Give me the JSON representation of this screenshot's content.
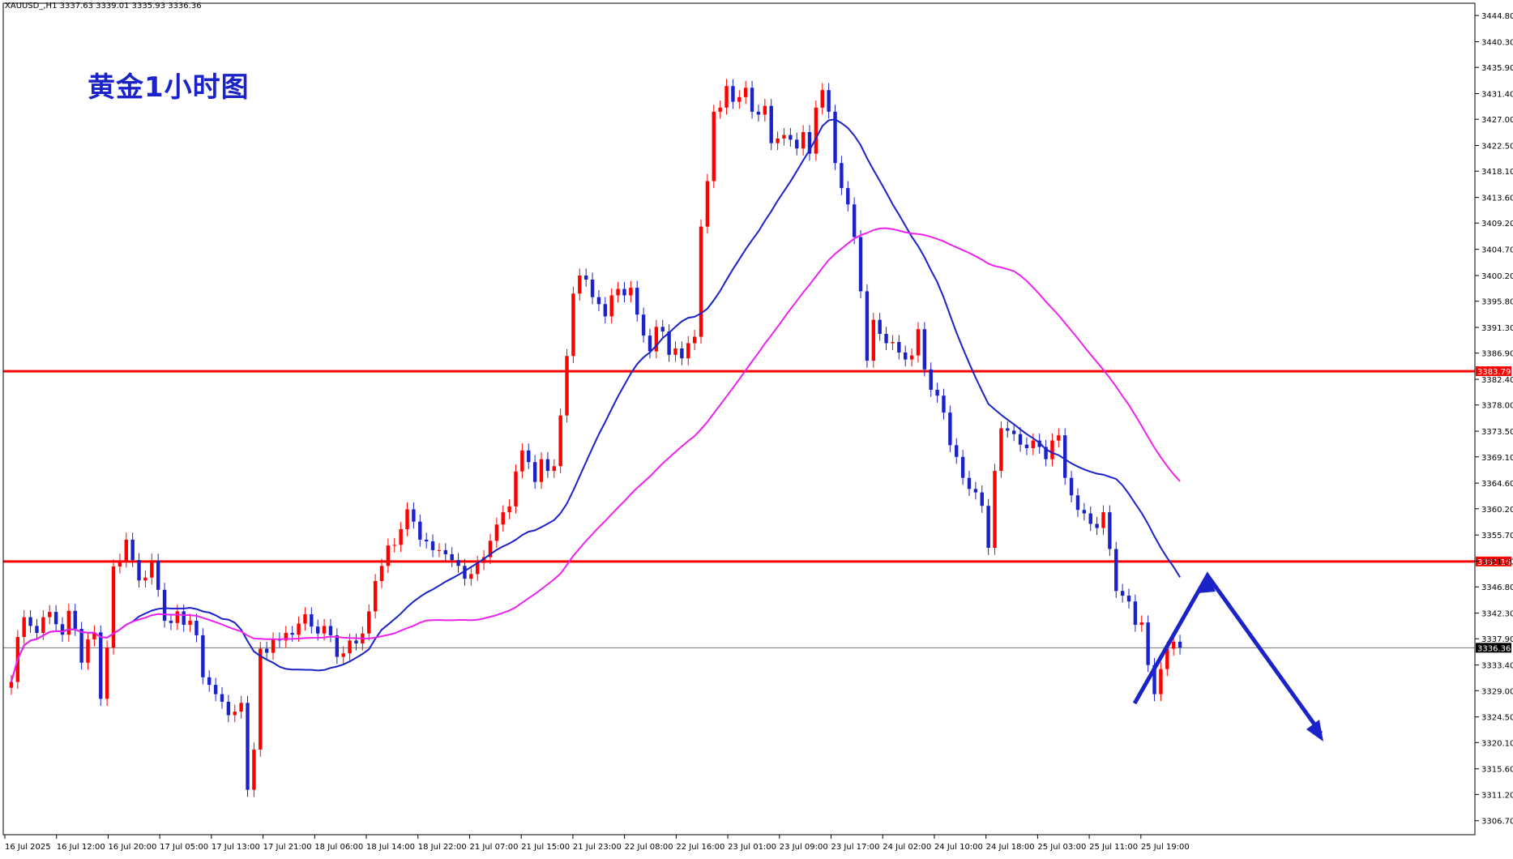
{
  "header": {
    "symbol_info": "XAUUSD_,H1  3337.63 3339.01 3335.93 3336.36"
  },
  "chart_data": {
    "type": "candlestick",
    "title": "黄金1小时图",
    "symbol": "XAUUSD_",
    "timeframe": "H1",
    "ohlc_header": {
      "open": 3337.63,
      "high": 3339.01,
      "low": 3335.93,
      "close": 3336.36
    },
    "ylim": [
      3304.3,
      3446.9
    ],
    "y_ticks": [
      "3444.80",
      "3440.30",
      "3435.90",
      "3431.40",
      "3427.00",
      "3422.50",
      "3418.10",
      "3413.60",
      "3409.20",
      "3404.70",
      "3400.20",
      "3395.80",
      "3391.30",
      "3386.90",
      "3382.40",
      "3378.00",
      "3373.50",
      "3369.10",
      "3364.60",
      "3360.20",
      "3355.70",
      "3351.20",
      "3346.80",
      "3342.30",
      "3337.90",
      "3333.40",
      "3329.00",
      "3324.50",
      "3320.10",
      "3315.60",
      "3311.20",
      "3306.70"
    ],
    "x_ticks": [
      "16 Jul 2025",
      "16 Jul 12:00",
      "16 Jul 20:00",
      "17 Jul 05:00",
      "17 Jul 13:00",
      "17 Jul 21:00",
      "18 Jul 06:00",
      "18 Jul 14:00",
      "18 Jul 22:00",
      "21 Jul 07:00",
      "21 Jul 15:00",
      "21 Jul 23:00",
      "22 Jul 08:00",
      "22 Jul 16:00",
      "23 Jul 01:00",
      "23 Jul 09:00",
      "23 Jul 17:00",
      "24 Jul 02:00",
      "24 Jul 10:00",
      "24 Jul 18:00",
      "25 Jul 03:00",
      "25 Jul 11:00",
      "25 Jul 19:00"
    ],
    "horizontal_lines": [
      {
        "price": 3383.79,
        "label": "3383.79",
        "color": "#ff0000"
      },
      {
        "price": 3351.16,
        "label": "3351.16",
        "color": "#ff0000"
      }
    ],
    "current_price": {
      "price": 3336.36,
      "label": "3336.36"
    },
    "candles_close": [
      3330.5,
      3338.2,
      3341.6,
      3340.1,
      3338.9,
      3341.6,
      3342.5,
      3340.4,
      3338.6,
      3342.7,
      3339.6,
      3333.8,
      3337.8,
      3339.0,
      3327.6,
      3336.4,
      3350.3,
      3351.3,
      3354.9,
      3351.4,
      3347.9,
      3348.4,
      3351.3,
      3346.3,
      3341.0,
      3340.6,
      3342.6,
      3340.3,
      3341.0,
      3338.5,
      3331.3,
      3330.0,
      3328.4,
      3327.1,
      3324.8,
      3325.4,
      3326.9,
      3312.0,
      3318.9,
      3336.2,
      3335.5,
      3337.8,
      3337.6,
      3338.9,
      3338.6,
      3340.5,
      3342.1,
      3340.0,
      3338.8,
      3340.1,
      3338.5,
      3334.8,
      3335.4,
      3337.6,
      3337.1,
      3338.8,
      3342.6,
      3347.8,
      3350.4,
      3353.9,
      3354.0,
      3356.7,
      3360.1,
      3358.0,
      3354.9,
      3354.6,
      3353.1,
      3353.1,
      3352.4,
      3351.4,
      3350.4,
      3348.2,
      3349.0,
      3350.9,
      3351.9,
      3354.7,
      3357.5,
      3359.6,
      3360.6,
      3366.6,
      3370.2,
      3368.2,
      3364.8,
      3368.7,
      3366.7,
      3367.5,
      3376.2,
      3386.4,
      3397.1,
      3400.2,
      3399.5,
      3396.5,
      3395.3,
      3393.2,
      3396.8,
      3397.9,
      3396.8,
      3398.1,
      3393.5,
      3389.9,
      3387.2,
      3391.4,
      3390.6,
      3386.6,
      3387.7,
      3386.0,
      3388.6,
      3389.7,
      3408.6,
      3416.4,
      3428.3,
      3429.0,
      3432.7,
      3430.0,
      3430.8,
      3432.4,
      3428.3,
      3427.8,
      3429.3,
      3422.9,
      3423.7,
      3424.3,
      3423.5,
      3422.0,
      3424.8,
      3421.1,
      3429.0,
      3432.0,
      3428.3,
      3419.5,
      3415.2,
      3412.4,
      3406.8,
      3397.5,
      3385.6,
      3392.6,
      3390.2,
      3388.6,
      3388.8,
      3387.0,
      3385.8,
      3386.5,
      3391.0,
      3384.1,
      3380.6,
      3379.6,
      3376.7,
      3371.1,
      3369.1,
      3365.5,
      3363.6,
      3363.0,
      3360.7,
      3353.5,
      3366.7,
      3374.0,
      3373.6,
      3373.0,
      3371.2,
      3370.6,
      3371.9,
      3370.8,
      3368.7,
      3371.9,
      3372.8,
      3365.5,
      3362.5,
      3360.0,
      3359.4,
      3357.6,
      3356.9,
      3359.6,
      3353.3,
      3346.1,
      3345.3,
      3344.3,
      3340.3,
      3340.7,
      3333.4,
      3328.4,
      3332.7,
      3336.2,
      3337.4,
      3336.4
    ]
  },
  "annotations": {
    "ma_blue_color": "#1a22c8",
    "ma_magenta_color": "#ee22ee",
    "bull_color": "#ff0000",
    "bear_color": "#1a22c8",
    "hline_color": "#ff0000",
    "arrow_color": "#1a22c8"
  }
}
